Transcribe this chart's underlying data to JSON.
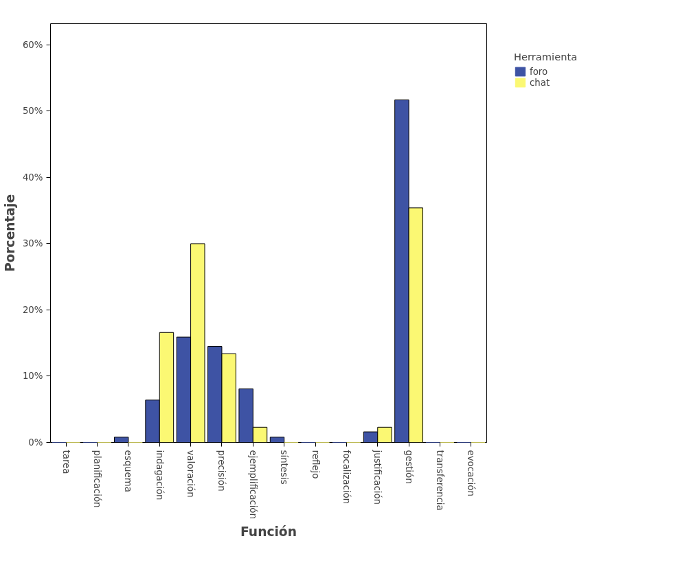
{
  "chart_data": {
    "type": "bar",
    "xlabel": "Función",
    "ylabel": "Porcentaje",
    "legend_title": "Herramienta",
    "categories": [
      "tarea",
      "planificación",
      "esquema",
      "indagación",
      "valoración",
      "precisión",
      "ejemplificación",
      "síntesis",
      "reflejo",
      "focalización",
      "justificación",
      "gestión",
      "transferencia",
      "evocación"
    ],
    "series": [
      {
        "name": "foro",
        "color": "#3e53a4",
        "values": [
          0,
          0,
          0.8,
          6.4,
          15.9,
          14.5,
          8.1,
          0.8,
          0,
          0,
          1.6,
          51.7,
          0,
          0
        ]
      },
      {
        "name": "chat",
        "color": "#fbf873",
        "values": [
          0,
          0,
          0,
          16.6,
          30.0,
          13.4,
          2.3,
          0,
          0,
          0,
          2.3,
          35.4,
          0,
          0
        ]
      }
    ],
    "ylim": [
      0,
      63.2
    ],
    "yticks": [
      {
        "value": 0,
        "label": "0%"
      },
      {
        "value": 10,
        "label": "10%"
      },
      {
        "value": 20,
        "label": "20%"
      },
      {
        "value": 30,
        "label": "30%"
      },
      {
        "value": 40,
        "label": "40%"
      },
      {
        "value": 50,
        "label": "50%"
      },
      {
        "value": 60,
        "label": "60%"
      }
    ],
    "grid": false,
    "legend": "top right"
  }
}
